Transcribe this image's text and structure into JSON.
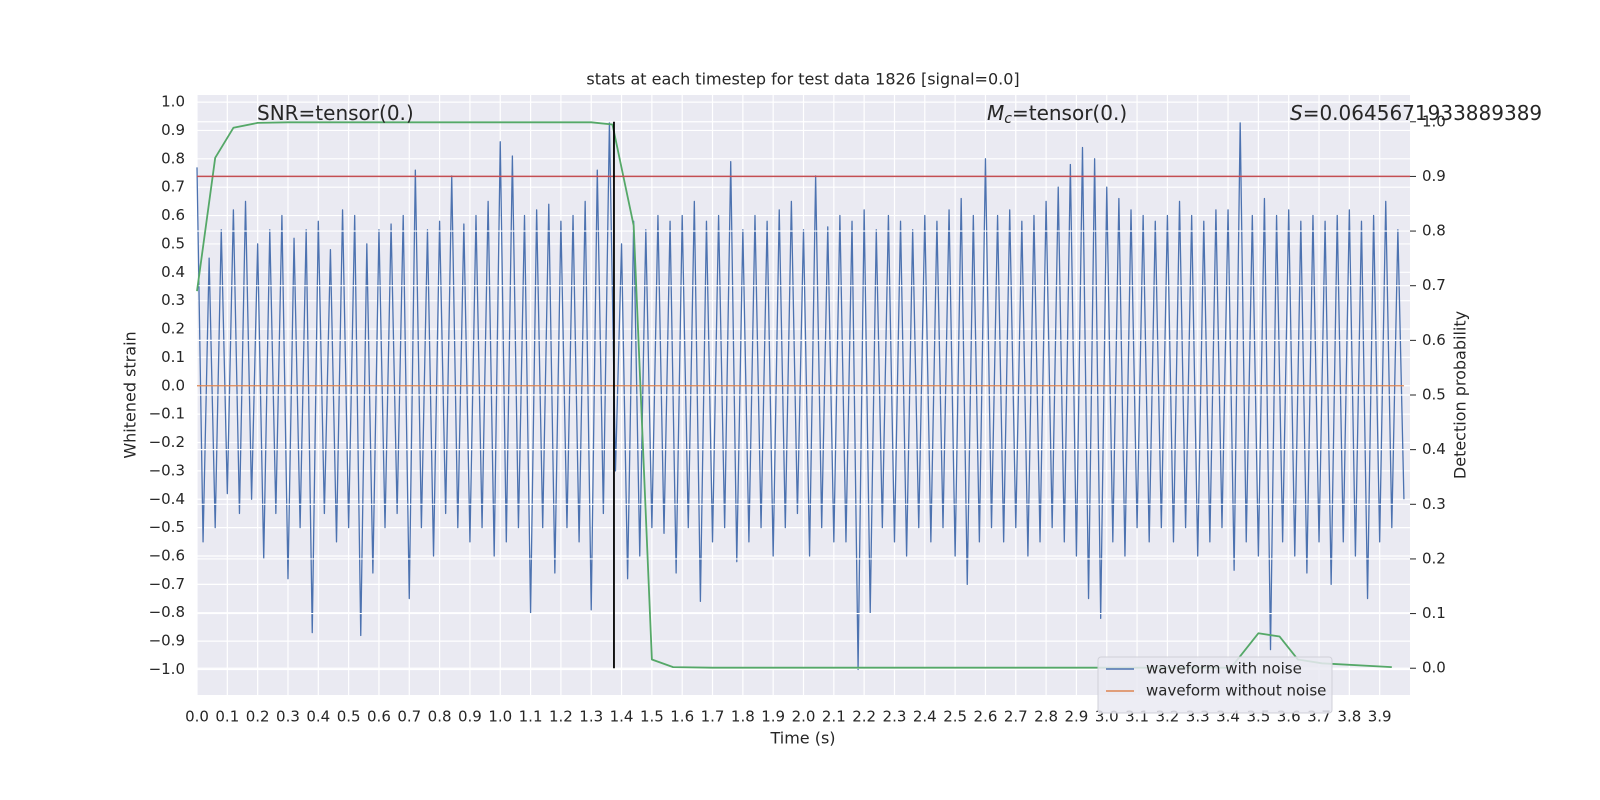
{
  "chart_data": {
    "type": "line",
    "title": "stats at each timestep for test data 1826 [signal=0.0]",
    "x_label": "Time (s)",
    "y_label": "Whitened strain",
    "y2_label": "Detection probability",
    "xlim": [
      0,
      4
    ],
    "ylim": [
      -1.09,
      1.025
    ],
    "y2lim": [
      -0.049,
      1.049
    ],
    "xticks": [
      {
        "value": 0,
        "label": "0.0"
      },
      0.1,
      0.2,
      0.3,
      0.4,
      0.5,
      0.6,
      0.7,
      0.8,
      0.9,
      {
        "value": 1,
        "label": "1.0"
      },
      1.1,
      1.2,
      1.3,
      1.4,
      1.5,
      1.6,
      1.7,
      1.8,
      1.9,
      {
        "value": 2,
        "label": "2.0"
      },
      2.1,
      2.2,
      2.3,
      2.4,
      2.5,
      2.6,
      2.7,
      2.8,
      2.9,
      {
        "value": 3,
        "label": "3.0"
      },
      3.1,
      3.2,
      3.3,
      3.4,
      3.5,
      3.6,
      3.7,
      3.8,
      3.9
    ],
    "yticks": [
      {
        "value": -1,
        "label": "−1.0"
      },
      {
        "value": -0.9,
        "label": "−0.9"
      },
      {
        "value": -0.8,
        "label": "−0.8"
      },
      {
        "value": -0.7,
        "label": "−0.7"
      },
      {
        "value": -0.6,
        "label": "−0.6"
      },
      {
        "value": -0.5,
        "label": "−0.5"
      },
      {
        "value": -0.4,
        "label": "−0.4"
      },
      {
        "value": -0.3,
        "label": "−0.3"
      },
      {
        "value": -0.2,
        "label": "−0.2"
      },
      {
        "value": -0.1,
        "label": "−0.1"
      },
      {
        "value": 0,
        "label": "0.0"
      },
      0.1,
      0.2,
      0.3,
      0.4,
      0.5,
      0.6,
      0.7,
      0.8,
      0.9,
      {
        "value": 1,
        "label": "1.0"
      }
    ],
    "y2ticks": [
      {
        "value": 0,
        "label": "0.0"
      },
      0.1,
      0.2,
      0.3,
      0.4,
      0.5,
      0.6,
      0.7,
      0.8,
      0.9,
      {
        "value": 1,
        "label": "1.0"
      }
    ],
    "grid": true,
    "y2grid": true,
    "legend": "lower right",
    "series": [
      {
        "name": "waveform with noise",
        "color": "#4c72b0",
        "x": [
          0,
          0.02,
          0.04,
          0.06,
          0.08,
          0.1,
          0.12,
          0.14,
          0.16,
          0.18,
          0.2,
          0.22,
          0.24,
          0.26,
          0.28,
          0.3,
          0.32,
          0.34,
          0.36,
          0.38,
          0.4,
          0.42,
          0.44,
          0.46,
          0.48,
          0.5,
          0.52,
          0.54,
          0.56,
          0.58,
          0.6,
          0.62,
          0.64,
          0.66,
          0.68,
          0.7,
          0.72,
          0.74,
          0.76,
          0.78,
          0.8,
          0.82,
          0.84,
          0.86,
          0.88,
          0.9,
          0.92,
          0.94,
          0.96,
          0.98,
          1,
          1.02,
          1.04,
          1.06,
          1.08,
          1.1,
          1.12,
          1.14,
          1.16,
          1.18,
          1.2,
          1.22,
          1.24,
          1.26,
          1.28,
          1.3,
          1.32,
          1.34,
          1.36,
          1.38,
          1.4,
          1.42,
          1.44,
          1.46,
          1.48,
          1.5,
          1.52,
          1.54,
          1.56,
          1.58,
          1.6,
          1.62,
          1.64,
          1.66,
          1.68,
          1.7,
          1.72,
          1.74,
          1.76,
          1.78,
          1.8,
          1.82,
          1.84,
          1.86,
          1.88,
          1.9,
          1.92,
          1.94,
          1.96,
          1.98,
          2,
          2.02,
          2.04,
          2.06,
          2.08,
          2.1,
          2.12,
          2.14,
          2.16,
          2.18,
          2.2,
          2.22,
          2.24,
          2.26,
          2.28,
          2.3,
          2.32,
          2.34,
          2.36,
          2.38,
          2.4,
          2.42,
          2.44,
          2.46,
          2.48,
          2.5,
          2.52,
          2.54,
          2.56,
          2.58,
          2.6,
          2.62,
          2.64,
          2.66,
          2.68,
          2.7,
          2.72,
          2.74,
          2.76,
          2.78,
          2.8,
          2.82,
          2.84,
          2.86,
          2.88,
          2.9,
          2.92,
          2.94,
          2.96,
          2.98,
          3,
          3.02,
          3.04,
          3.06,
          3.08,
          3.1,
          3.12,
          3.14,
          3.16,
          3.18,
          3.2,
          3.22,
          3.24,
          3.26,
          3.28,
          3.3,
          3.32,
          3.34,
          3.36,
          3.38,
          3.4,
          3.42,
          3.44,
          3.46,
          3.48,
          3.5,
          3.52,
          3.54,
          3.56,
          3.58,
          3.6,
          3.62,
          3.64,
          3.66,
          3.68,
          3.7,
          3.72,
          3.74,
          3.76,
          3.78,
          3.8,
          3.82,
          3.84,
          3.86,
          3.88,
          3.9,
          3.92,
          3.94,
          3.96,
          3.98
        ],
        "values": [
          0.77,
          -0.55,
          0.45,
          -0.5,
          0.55,
          -0.38,
          0.62,
          -0.45,
          0.65,
          -0.4,
          0.5,
          -0.61,
          0.55,
          -0.45,
          0.6,
          -0.68,
          0.52,
          -0.5,
          0.55,
          -0.87,
          0.58,
          -0.45,
          0.48,
          -0.55,
          0.62,
          -0.5,
          0.6,
          -0.88,
          0.5,
          -0.66,
          0.55,
          -0.5,
          0.57,
          -0.45,
          0.6,
          -0.75,
          0.76,
          -0.5,
          0.55,
          -0.6,
          0.58,
          -0.45,
          0.74,
          -0.5,
          0.57,
          -0.55,
          0.6,
          -0.5,
          0.65,
          -0.6,
          0.86,
          -0.55,
          0.81,
          -0.5,
          0.6,
          -0.8,
          0.62,
          -0.5,
          0.64,
          -0.66,
          0.58,
          -0.5,
          0.6,
          -0.55,
          0.65,
          -0.79,
          0.76,
          -0.45,
          0.93,
          -0.3,
          0.5,
          -0.68,
          0.58,
          -0.6,
          0.55,
          -0.5,
          0.6,
          -0.52,
          0.58,
          -0.66,
          0.6,
          -0.5,
          0.65,
          -0.76,
          0.58,
          -0.55,
          0.6,
          -0.5,
          0.79,
          -0.62,
          0.55,
          -0.55,
          0.6,
          -0.5,
          0.58,
          -0.6,
          0.62,
          -0.5,
          0.65,
          -0.45,
          0.55,
          -0.6,
          0.74,
          -0.5,
          0.56,
          -0.55,
          0.6,
          -0.55,
          0.58,
          -1.0,
          0.62,
          -0.8,
          0.55,
          -0.5,
          0.6,
          -0.55,
          0.58,
          -0.6,
          0.55,
          -0.5,
          0.6,
          -0.55,
          0.58,
          -0.5,
          0.62,
          -0.6,
          0.66,
          -0.7,
          0.6,
          -0.55,
          0.8,
          -0.5,
          0.6,
          -0.55,
          0.62,
          -0.5,
          0.58,
          -0.6,
          0.6,
          -0.55,
          0.65,
          -0.5,
          0.7,
          -0.55,
          0.78,
          -0.6,
          0.84,
          -0.75,
          0.8,
          -0.82,
          0.7,
          -0.55,
          0.66,
          -0.6,
          0.62,
          -0.5,
          0.6,
          -0.55,
          0.58,
          -0.5,
          0.6,
          -0.55,
          0.65,
          -0.5,
          0.6,
          -0.6,
          0.58,
          -0.55,
          0.62,
          -0.5,
          0.62,
          -0.65,
          0.93,
          -0.55,
          0.6,
          -0.6,
          0.66,
          -0.93,
          0.6,
          -0.55,
          0.62,
          -0.6,
          0.58,
          -0.66,
          0.6,
          -0.55,
          0.58,
          -0.7,
          0.6,
          -0.55,
          0.62,
          -0.6,
          0.58,
          -0.75,
          0.6,
          -0.55,
          0.65,
          -0.5,
          0.55,
          -0.4
        ]
      },
      {
        "name": "waveform without noise",
        "color": "#dd8452",
        "x": [
          0,
          3.98
        ],
        "values": [
          0,
          0
        ]
      },
      {
        "color": "#55a868",
        "axis": "y2",
        "x": [
          0,
          0.06,
          0.12,
          0.2,
          0.3,
          0.5,
          0.8,
          1.1,
          1.3,
          1.37,
          1.44,
          1.5,
          1.57,
          1.7,
          2.5,
          3.41,
          3.5,
          3.57,
          3.63,
          3.71,
          3.94
        ],
        "values": [
          0.69,
          0.934,
          0.989,
          0.998,
          0.999,
          0.999,
          0.999,
          0.999,
          0.999,
          0.995,
          0.81,
          0.016,
          0.002,
          0.001,
          0.001,
          0.001,
          0.064,
          0.058,
          0.016,
          0.009,
          0.002
        ]
      }
    ],
    "threshold": {
      "value": 0.9,
      "axis": "y2",
      "color": "#c44e52"
    },
    "vline": {
      "x": 1.375,
      "ymin": 0,
      "ymax": 1,
      "axis": "y2",
      "color": "#000000"
    },
    "annotations": [
      {
        "text": "SNR=tensor(0.)"
      },
      {
        "symbol": "M",
        "subscript": "c",
        "text": "=tensor(0.)"
      },
      {
        "symbol": "S",
        "text": "=0.0645671933889389"
      }
    ]
  }
}
